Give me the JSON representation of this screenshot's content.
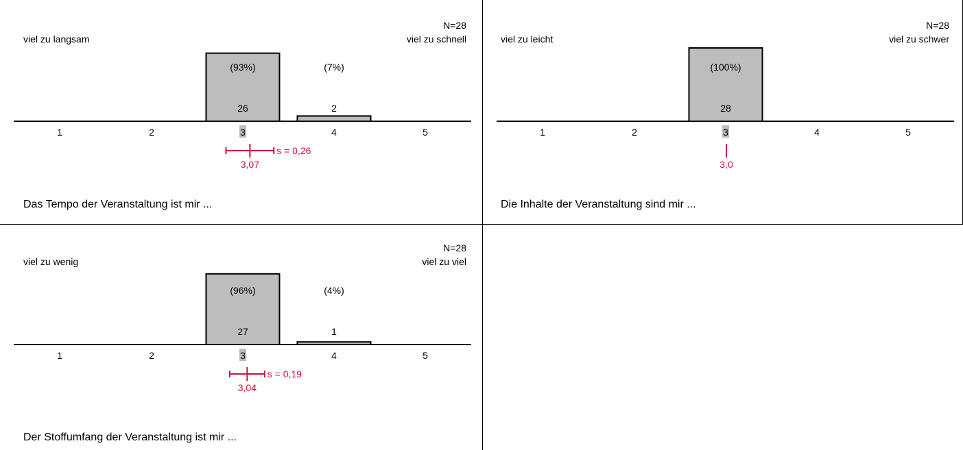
{
  "chart_data": [
    {
      "type": "bar",
      "title": "Das Tempo der Veranstaltung ist mir ...",
      "n_label": "N=28",
      "left_anchor": "viel zu langsam",
      "right_anchor": "viel zu schnell",
      "categories": [
        "1",
        "2",
        "3",
        "4",
        "5"
      ],
      "values": [
        0,
        0,
        26,
        2,
        0
      ],
      "percent_labels": [
        "",
        "",
        "(93%)",
        "(7%)",
        ""
      ],
      "count_labels": [
        "",
        "",
        "26",
        "2",
        ""
      ],
      "median_category": "3",
      "mean": 3.07,
      "mean_label": "3,07",
      "sd": 0.26,
      "sd_label": "s = 0,26",
      "ylim": [
        0,
        28
      ]
    },
    {
      "type": "bar",
      "title": "Die Inhalte der Veranstaltung sind mir ...",
      "n_label": "N=28",
      "left_anchor": "viel zu leicht",
      "right_anchor": "viel zu schwer",
      "categories": [
        "1",
        "2",
        "3",
        "4",
        "5"
      ],
      "values": [
        0,
        0,
        28,
        0,
        0
      ],
      "percent_labels": [
        "",
        "",
        "(100%)",
        "",
        ""
      ],
      "count_labels": [
        "",
        "",
        "28",
        "",
        ""
      ],
      "median_category": "3",
      "mean": 3.0,
      "mean_label": "3,0",
      "sd": 0,
      "sd_label": "",
      "ylim": [
        0,
        28
      ]
    },
    {
      "type": "bar",
      "title": "Der Stoffumfang der Veranstaltung ist mir ...",
      "n_label": "N=28",
      "left_anchor": "viel zu wenig",
      "right_anchor": "viel zu viel",
      "categories": [
        "1",
        "2",
        "3",
        "4",
        "5"
      ],
      "values": [
        0,
        0,
        27,
        1,
        0
      ],
      "percent_labels": [
        "",
        "",
        "(96%)",
        "(4%)",
        ""
      ],
      "count_labels": [
        "",
        "",
        "27",
        "1",
        ""
      ],
      "median_category": "3",
      "mean": 3.04,
      "mean_label": "3,04",
      "sd": 0.19,
      "sd_label": "s = 0,19",
      "ylim": [
        0,
        28
      ]
    }
  ],
  "colors": {
    "bar_fill": "#bdbdbd",
    "bar_stroke": "#000000",
    "mean_marker": "#d0103a",
    "median_highlight": "#bdbdbd"
  }
}
